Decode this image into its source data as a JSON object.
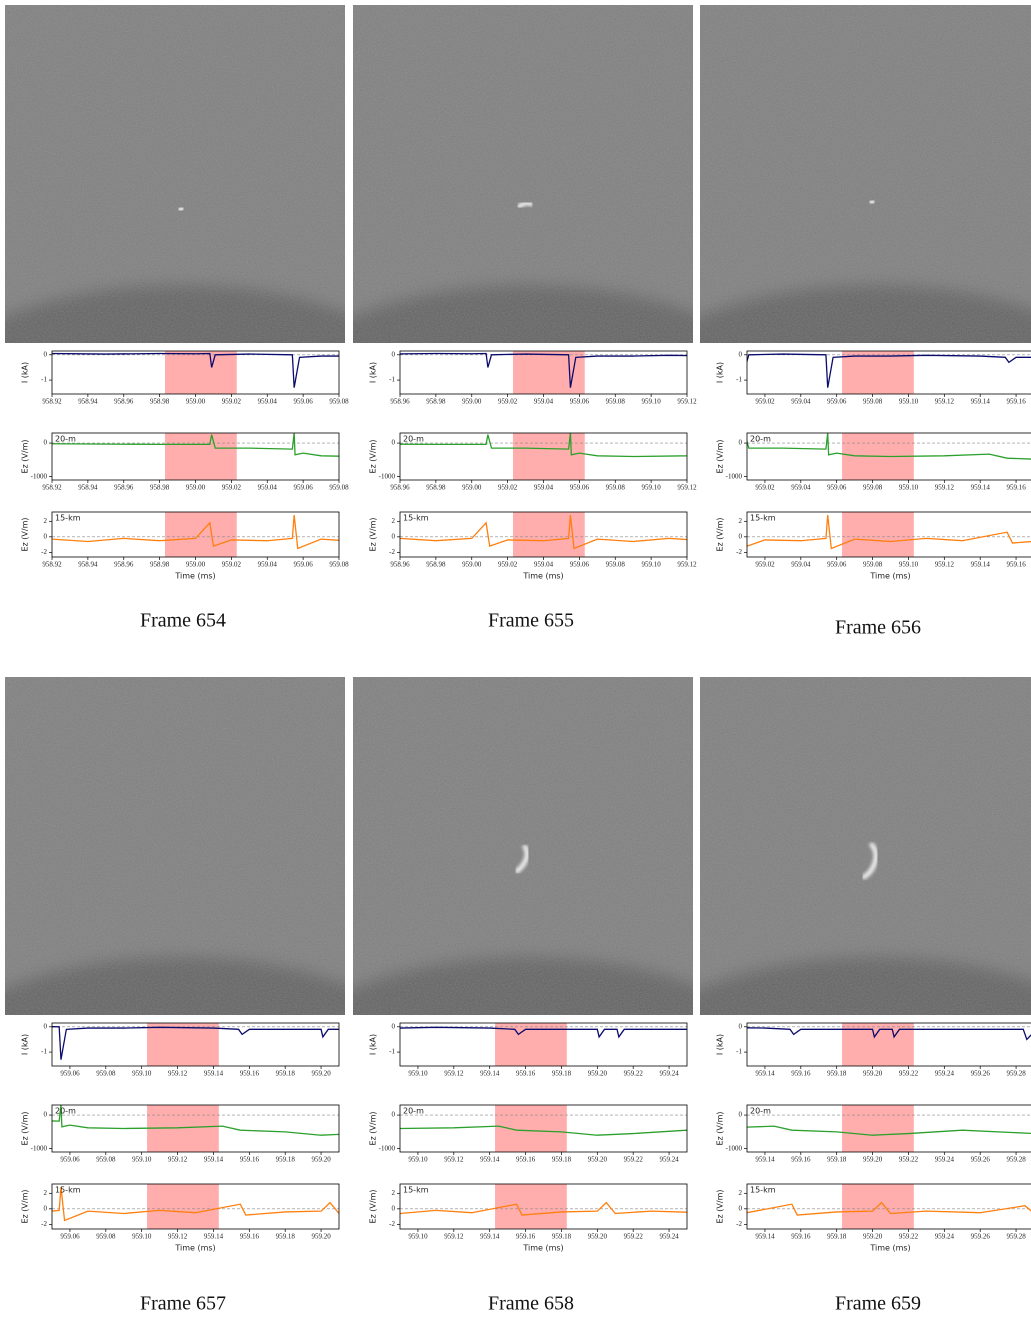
{
  "labels": {
    "current_axis": "I (kA)",
    "field_axis": "Ez (V/m)",
    "time_axis": "Time (ms)",
    "near": "20-m",
    "far": "15-km"
  },
  "span_color": "#ff9f9f",
  "signals": {
    "current": {
      "color": "#0b0b6e",
      "ylim": [
        -1.55,
        0.15
      ],
      "yticks": [
        -1,
        0
      ],
      "x": [
        958.92,
        958.95,
        958.98,
        959.0,
        959.008,
        959.009,
        959.011,
        959.03,
        959.054,
        959.055,
        959.058,
        959.07,
        959.09,
        959.11,
        959.14,
        959.154,
        959.156,
        959.16,
        959.18,
        959.2,
        959.201,
        959.204,
        959.211,
        959.212,
        959.215,
        959.24,
        959.27,
        959.284,
        959.286,
        959.29
      ],
      "values": [
        0.05,
        0.03,
        0.05,
        0.04,
        0.05,
        -0.5,
        0.0,
        0.03,
        0.0,
        -1.3,
        -0.1,
        -0.05,
        -0.05,
        -0.02,
        -0.05,
        -0.1,
        -0.3,
        -0.1,
        -0.1,
        -0.1,
        -0.4,
        -0.1,
        -0.1,
        -0.4,
        -0.1,
        -0.1,
        -0.1,
        -0.1,
        -0.5,
        -0.2
      ]
    },
    "near_field": {
      "color": "#2ca02c",
      "ylim": [
        -1100,
        300
      ],
      "yticks": [
        -1000,
        0
      ],
      "x": [
        958.92,
        958.98,
        959.008,
        959.009,
        959.011,
        959.03,
        959.054,
        959.055,
        959.0555,
        959.06,
        959.07,
        959.09,
        959.12,
        959.145,
        959.155,
        959.18,
        959.2,
        959.22,
        959.25,
        959.29
      ],
      "values": [
        -20,
        -40,
        -40,
        250,
        -150,
        -150,
        -180,
        300,
        -350,
        -300,
        -380,
        -400,
        -380,
        -330,
        -450,
        -500,
        -600,
        -550,
        -450,
        -550
      ]
    },
    "far_field": {
      "color": "#ff7f0e",
      "ylim": [
        -2.6,
        3.2
      ],
      "yticks": [
        -2,
        0,
        2
      ],
      "x": [
        958.92,
        958.94,
        958.96,
        958.98,
        959.0,
        959.008,
        959.01,
        959.02,
        959.04,
        959.054,
        959.055,
        959.057,
        959.07,
        959.09,
        959.11,
        959.13,
        959.155,
        959.158,
        959.18,
        959.2,
        959.205,
        959.21,
        959.23,
        959.26,
        959.285,
        959.29
      ],
      "values": [
        -0.3,
        -0.6,
        -0.2,
        -0.5,
        -0.2,
        1.8,
        -1.2,
        -0.4,
        -0.5,
        -0.2,
        2.8,
        -1.5,
        -0.3,
        -0.6,
        -0.2,
        -0.5,
        0.6,
        -0.8,
        -0.4,
        -0.3,
        0.8,
        -0.6,
        -0.3,
        -0.5,
        0.4,
        -0.6
      ]
    }
  },
  "panels": [
    {
      "caption": "Frame 654",
      "xlim": [
        958.92,
        959.08
      ],
      "span": [
        958.983,
        959.023
      ],
      "xticks": [
        958.92,
        958.94,
        958.96,
        958.98,
        {
          "value": 959,
          "label": "959.00"
        },
        959.02,
        959.04,
        959.06,
        959.08
      ]
    },
    {
      "caption": "Frame 655",
      "xlim": [
        958.96,
        959.12
      ],
      "span": [
        959.023,
        959.063
      ],
      "xticks": [
        958.96,
        958.98,
        {
          "value": 959,
          "label": "959.00"
        },
        959.02,
        959.04,
        959.06,
        959.08,
        {
          "value": 959.1,
          "label": "959.10"
        },
        959.12
      ]
    },
    {
      "caption": "Frame 656",
      "xlim": [
        959.01,
        959.17
      ],
      "span": [
        959.063,
        959.103
      ],
      "xticks": [
        959.02,
        959.04,
        959.06,
        959.08,
        {
          "value": 959.1,
          "label": "959.10"
        },
        959.12,
        959.14,
        959.16
      ]
    },
    {
      "caption": "Frame 657",
      "xlim": [
        959.05,
        959.21
      ],
      "span": [
        959.103,
        959.143
      ],
      "xticks": [
        959.06,
        959.08,
        {
          "value": 959.1,
          "label": "959.10"
        },
        959.12,
        959.14,
        959.16,
        959.18,
        {
          "value": 959.2,
          "label": "959.20"
        }
      ]
    },
    {
      "caption": "Frame 658",
      "xlim": [
        959.09,
        959.25
      ],
      "span": [
        959.143,
        959.183
      ],
      "xticks": [
        {
          "value": 959.1,
          "label": "959.10"
        },
        959.12,
        959.14,
        959.16,
        959.18,
        {
          "value": 959.2,
          "label": "959.20"
        },
        959.22,
        959.24
      ]
    },
    {
      "caption": "Frame 659",
      "xlim": [
        959.13,
        959.29
      ],
      "span": [
        959.183,
        959.223
      ],
      "xticks": [
        959.14,
        959.16,
        959.18,
        {
          "value": 959.2,
          "label": "959.20"
        },
        959.22,
        959.24,
        959.26,
        959.28
      ]
    }
  ]
}
